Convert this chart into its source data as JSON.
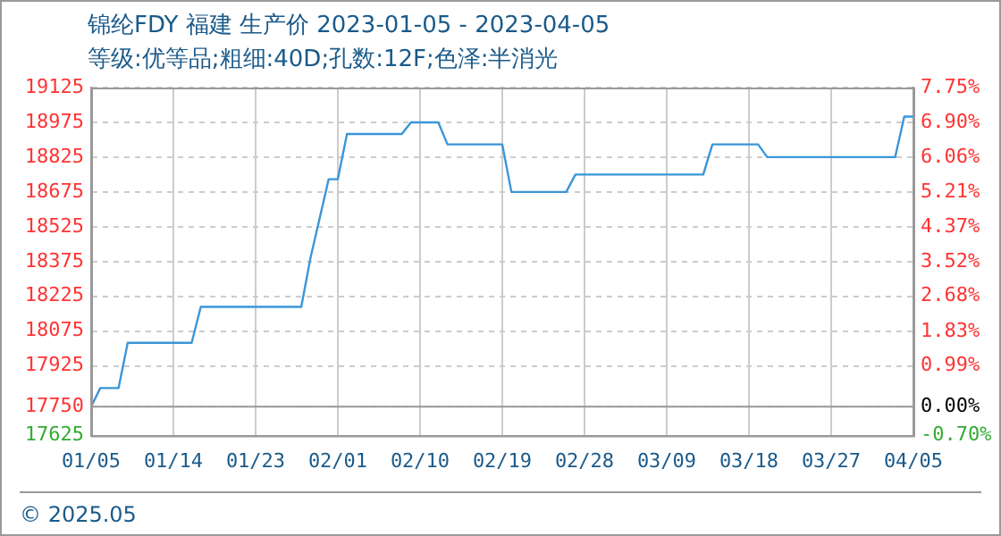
{
  "chart_data": {
    "type": "line",
    "title": "锦纶FDY 福建 生产价 2023-01-05 - 2023-04-05",
    "subtitle": "等级:优等品;粗细:40D;孔数:12F;色泽:半消光",
    "annotations": [
      "© 2025.05"
    ],
    "x": [
      "2023-01-05",
      "2023-01-06",
      "2023-01-08",
      "2023-01-09",
      "2023-01-16",
      "2023-01-17",
      "2023-01-28",
      "2023-01-29",
      "2023-01-31",
      "2023-02-01",
      "2023-02-02",
      "2023-02-08",
      "2023-02-09",
      "2023-02-12",
      "2023-02-13",
      "2023-02-19",
      "2023-02-20",
      "2023-02-26",
      "2023-02-27",
      "2023-03-13",
      "2023-03-14",
      "2023-03-19",
      "2023-03-20",
      "2023-04-03",
      "2023-04-04",
      "2023-04-05"
    ],
    "series": [
      {
        "color": "#3a96d8",
        "values": [
          17750,
          17830,
          17830,
          18025,
          18025,
          18180,
          18180,
          18390,
          18730,
          18730,
          18925,
          18925,
          18975,
          18975,
          18880,
          18880,
          18675,
          18675,
          18750,
          18750,
          18880,
          18880,
          18825,
          18825,
          19000,
          19000
        ]
      }
    ],
    "xlim": [
      "2023-01-05",
      "2023-04-05"
    ],
    "xticks": [
      {
        "value": "2023-01-05",
        "label": "01/05"
      },
      {
        "value": "2023-01-14",
        "label": "01/14"
      },
      {
        "value": "2023-01-23",
        "label": "01/23"
      },
      {
        "value": "2023-02-01",
        "label": "02/01"
      },
      {
        "value": "2023-02-10",
        "label": "02/10"
      },
      {
        "value": "2023-02-19",
        "label": "02/19"
      },
      {
        "value": "2023-02-28",
        "label": "02/28"
      },
      {
        "value": "2023-03-09",
        "label": "03/09"
      },
      {
        "value": "2023-03-18",
        "label": "03/18"
      },
      {
        "value": "2023-03-27",
        "label": "03/27"
      },
      {
        "value": "2023-04-05",
        "label": "04/05"
      }
    ],
    "ylim": [
      17625,
      19125
    ],
    "yticks": [
      17625,
      17750,
      17925,
      18075,
      18225,
      18375,
      18525,
      18675,
      18825,
      18975,
      19125
    ],
    "y2lim": [
      -0.7,
      7.75
    ],
    "y2ticks": [
      {
        "value": -0.7,
        "label": "-0.70%"
      },
      {
        "value": 0,
        "label": "0.00%"
      },
      {
        "value": 0.99,
        "label": "0.99%"
      },
      {
        "value": 1.83,
        "label": "1.83%"
      },
      {
        "value": 2.68,
        "label": "2.68%"
      },
      {
        "value": 3.52,
        "label": "3.52%"
      },
      {
        "value": 4.37,
        "label": "4.37%"
      },
      {
        "value": 5.21,
        "label": "5.21%"
      },
      {
        "value": 6.06,
        "label": "6.06%"
      },
      {
        "value": 6.9,
        "label": "6.90%"
      },
      {
        "value": 7.75,
        "label": "7.75%"
      }
    ],
    "grid": true,
    "marker": "none",
    "line_style": "solid"
  }
}
